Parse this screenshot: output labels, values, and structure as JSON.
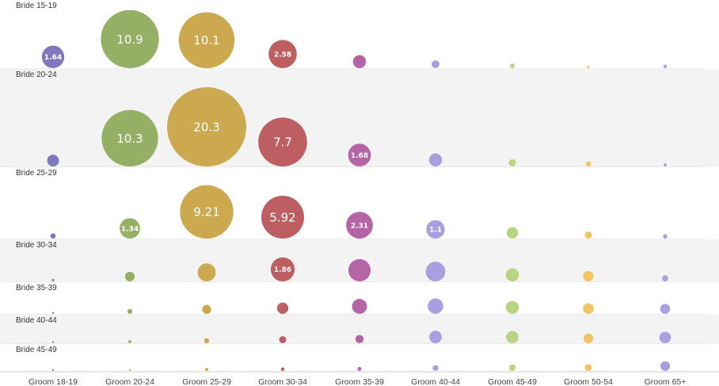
{
  "chart_data": {
    "type": "bubble-matrix",
    "rows": [
      "Bride 15-19",
      "Bride 20-24",
      "Bride 25-29",
      "Bride 30-34",
      "Bride 35-39",
      "Bride 40-44",
      "Bride 45-49"
    ],
    "columns": [
      "Groom 18-19",
      "Groom 20-24",
      "Groom 25-29",
      "Groom 30-34",
      "Groom 35-39",
      "Groom 40-44",
      "Groom 45-49",
      "Groom 50-54",
      "Groom 65+"
    ],
    "column_colors": [
      "#8078bf",
      "#95b064",
      "#cca94f",
      "#bd5e63",
      "#b565a6",
      "#a99fe0",
      "#b8d480",
      "#f0c460",
      "#a99fe0"
    ],
    "values": [
      [
        1.64,
        10.9,
        10.1,
        2.58,
        0.55,
        0.2,
        0.07,
        0.02,
        0.04
      ],
      [
        0.45,
        10.3,
        20.3,
        7.7,
        1.68,
        0.55,
        0.17,
        0.08,
        0.03
      ],
      [
        0.09,
        1.34,
        9.21,
        5.92,
        2.31,
        1.1,
        0.42,
        0.16,
        0.06
      ],
      [
        0.02,
        0.3,
        1.05,
        1.86,
        1.6,
        1.25,
        0.56,
        0.35,
        0.12
      ],
      [
        0.005,
        0.08,
        0.26,
        0.41,
        0.72,
        0.77,
        0.54,
        0.37,
        0.32
      ],
      [
        0.002,
        0.03,
        0.08,
        0.16,
        0.22,
        0.5,
        0.49,
        0.3,
        0.43
      ],
      [
        0.001,
        0.01,
        0.03,
        0.04,
        0.05,
        0.11,
        0.14,
        0.15,
        0.3
      ]
    ],
    "labels": [
      [
        "1.64",
        "10.9",
        "10.1",
        "2.58",
        "",
        "",
        "",
        "",
        ""
      ],
      [
        "",
        "10.3",
        "20.3",
        "7.7",
        "1.68",
        "",
        "",
        "",
        ""
      ],
      [
        "",
        "1.34",
        "9.21",
        "5.92",
        "2.31",
        "1.1",
        "",
        "",
        ""
      ],
      [
        "",
        "",
        "",
        "1.86",
        "",
        "",
        "",
        "",
        ""
      ],
      [
        "",
        "",
        "",
        "",
        "",
        "",
        "",
        "",
        ""
      ],
      [
        "",
        "",
        "",
        "",
        "",
        "",
        "",
        "",
        ""
      ],
      [
        "",
        "",
        "",
        "",
        "",
        "",
        "",
        "",
        ""
      ]
    ]
  }
}
